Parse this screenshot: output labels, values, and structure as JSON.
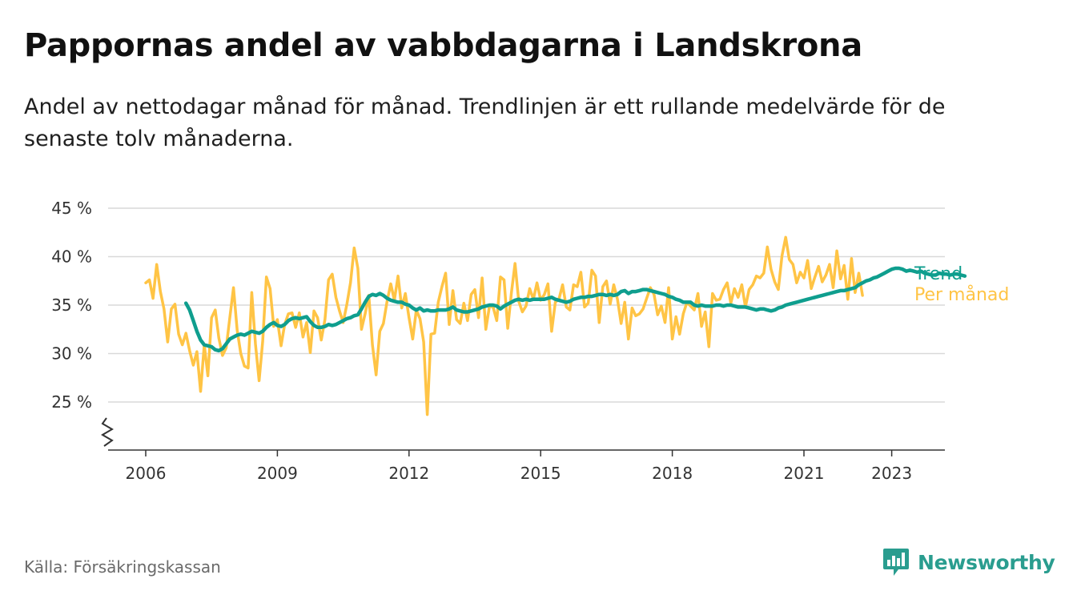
{
  "header": {
    "title": "Pappornas andel av vabbdagarna i Landskrona",
    "subtitle": "Andel av nettodagar månad för månad. Trendlinjen är ett rullande medelvärde för de senaste tolv månaderna."
  },
  "footer": {
    "source": "Källa: Försäkringskassan",
    "brand": "Newsworthy",
    "brand_icon": "newsworthy-logo-icon"
  },
  "colors": {
    "trend": "#0f9e8e",
    "monthly": "#ffc445",
    "grid": "#d9d9d9",
    "axis": "#333333",
    "brand": "#2a9d8f"
  },
  "chart_data": {
    "type": "line",
    "ylim": [
      20,
      45
    ],
    "y_ticks": [
      25,
      30,
      35,
      40,
      45
    ],
    "y_tick_labels": [
      "25 %",
      "30 %",
      "35 %",
      "40 %",
      "45 %"
    ],
    "y_axis_break": true,
    "x_ticks": [
      2006,
      2009,
      2012,
      2015,
      2018,
      2021,
      2023
    ],
    "x_tick_labels": [
      "2006",
      "2009",
      "2012",
      "2015",
      "2018",
      "2021",
      "2023"
    ],
    "grid": true,
    "legend": "inline labels at line ends (right)",
    "series": [
      {
        "name": "Per månad",
        "start": "2006-01",
        "values": [
          37.3,
          37.6,
          35.7,
          39.2,
          36.4,
          34.6,
          31.2,
          34.6,
          35.1,
          32.0,
          30.9,
          32.1,
          30.3,
          28.8,
          30.2,
          26.1,
          30.9,
          27.7,
          33.7,
          34.5,
          31.6,
          29.8,
          30.6,
          33.7,
          36.8,
          32.4,
          30.0,
          28.7,
          28.5,
          36.3,
          31.0,
          27.2,
          31.3,
          37.9,
          36.7,
          32.8,
          33.5,
          30.8,
          33.0,
          34.1,
          34.2,
          32.7,
          34.2,
          31.7,
          33.2,
          30.1,
          34.4,
          33.7,
          31.4,
          33.5,
          37.6,
          38.2,
          35.8,
          34.4,
          33.2,
          35.1,
          37.3,
          40.9,
          38.8,
          32.5,
          34.1,
          36.0,
          30.9,
          27.8,
          32.3,
          33.1,
          35.4,
          37.2,
          35.5,
          38.0,
          34.7,
          36.2,
          33.7,
          31.5,
          34.5,
          33.6,
          31.2,
          23.7,
          32.0,
          32.1,
          35.3,
          36.9,
          38.3,
          33.0,
          36.5,
          33.5,
          33.1,
          35.2,
          33.4,
          36.1,
          36.6,
          33.7,
          37.8,
          32.5,
          34.9,
          34.8,
          33.4,
          37.9,
          37.6,
          32.6,
          36.3,
          39.3,
          35.4,
          34.3,
          34.9,
          36.7,
          35.6,
          37.3,
          35.5,
          36.1,
          37.2,
          32.3,
          35.3,
          35.6,
          37.1,
          34.8,
          34.5,
          37.1,
          36.9,
          38.4,
          34.8,
          35.2,
          38.6,
          38.0,
          33.2,
          36.9,
          37.5,
          35.1,
          37.1,
          35.6,
          33.1,
          35.3,
          31.5,
          34.7,
          33.9,
          34.1,
          34.6,
          35.7,
          36.8,
          36.1,
          34.0,
          34.9,
          33.2,
          36.8,
          31.5,
          33.8,
          32.0,
          34.1,
          35.3,
          34.9,
          34.5,
          36.2,
          32.8,
          34.3,
          30.7,
          36.2,
          35.5,
          35.6,
          36.6,
          37.3,
          35.2,
          36.7,
          35.8,
          37.1,
          34.8,
          36.6,
          37.1,
          38.0,
          37.8,
          38.3,
          41.0,
          38.7,
          37.4,
          36.6,
          40.1,
          42.0,
          39.7,
          39.2,
          37.3,
          38.4,
          37.8,
          39.6,
          36.7,
          37.9,
          39.0,
          37.4,
          38.1,
          39.2,
          36.8,
          40.6,
          37.7,
          39.1,
          35.6,
          39.8,
          36.3,
          38.3,
          36.0
        ]
      },
      {
        "name": "Trend",
        "start": "2006-12",
        "values": [
          35.2,
          34.5,
          33.4,
          32.3,
          31.4,
          30.9,
          30.8,
          30.7,
          30.4,
          30.3,
          30.5,
          31.0,
          31.5,
          31.7,
          31.9,
          32.0,
          31.9,
          32.1,
          32.3,
          32.2,
          32.1,
          32.3,
          32.7,
          33.0,
          33.2,
          32.9,
          32.8,
          33.0,
          33.4,
          33.6,
          33.7,
          33.6,
          33.7,
          33.8,
          33.3,
          32.9,
          32.7,
          32.7,
          32.8,
          33.0,
          32.9,
          33.0,
          33.2,
          33.4,
          33.6,
          33.7,
          33.9,
          34.0,
          34.6,
          35.3,
          35.9,
          36.1,
          36.0,
          36.2,
          36.0,
          35.7,
          35.5,
          35.4,
          35.3,
          35.3,
          35.1,
          35.0,
          34.7,
          34.5,
          34.7,
          34.4,
          34.5,
          34.4,
          34.4,
          34.5,
          34.5,
          34.5,
          34.6,
          34.8,
          34.5,
          34.4,
          34.3,
          34.3,
          34.4,
          34.5,
          34.6,
          34.8,
          34.9,
          35.0,
          35.0,
          34.9,
          34.6,
          34.9,
          35.1,
          35.3,
          35.5,
          35.6,
          35.5,
          35.6,
          35.5,
          35.6,
          35.6,
          35.6,
          35.6,
          35.7,
          35.8,
          35.6,
          35.5,
          35.4,
          35.3,
          35.4,
          35.6,
          35.7,
          35.8,
          35.8,
          35.9,
          35.9,
          36.0,
          36.1,
          36.1,
          36.0,
          36.1,
          36.0,
          36.1,
          36.4,
          36.5,
          36.2,
          36.4,
          36.4,
          36.5,
          36.6,
          36.6,
          36.5,
          36.4,
          36.3,
          36.2,
          36.1,
          35.9,
          35.8,
          35.6,
          35.5,
          35.3,
          35.3,
          35.3,
          35.0,
          34.9,
          35.0,
          34.9,
          34.9,
          34.9,
          35.0,
          35.0,
          34.9,
          35.0,
          35.0,
          34.9,
          34.8,
          34.8,
          34.8,
          34.7,
          34.6,
          34.5,
          34.6,
          34.6,
          34.5,
          34.4,
          34.5,
          34.7,
          34.8,
          35.0,
          35.1,
          35.2,
          35.3,
          35.4,
          35.5,
          35.6,
          35.7,
          35.8,
          35.9,
          36.0,
          36.1,
          36.2,
          36.3,
          36.4,
          36.5,
          36.5,
          36.6,
          36.7,
          36.8,
          37.1,
          37.3,
          37.5,
          37.6,
          37.8,
          37.9,
          38.1,
          38.3,
          38.5,
          38.7,
          38.8,
          38.8,
          38.7,
          38.5,
          38.6,
          38.5,
          38.4,
          38.5,
          38.3,
          38.2,
          38.1,
          38.1,
          38.3,
          38.2,
          38.2,
          38.1,
          38.2,
          38.2,
          38.1,
          38.0
        ]
      }
    ]
  }
}
